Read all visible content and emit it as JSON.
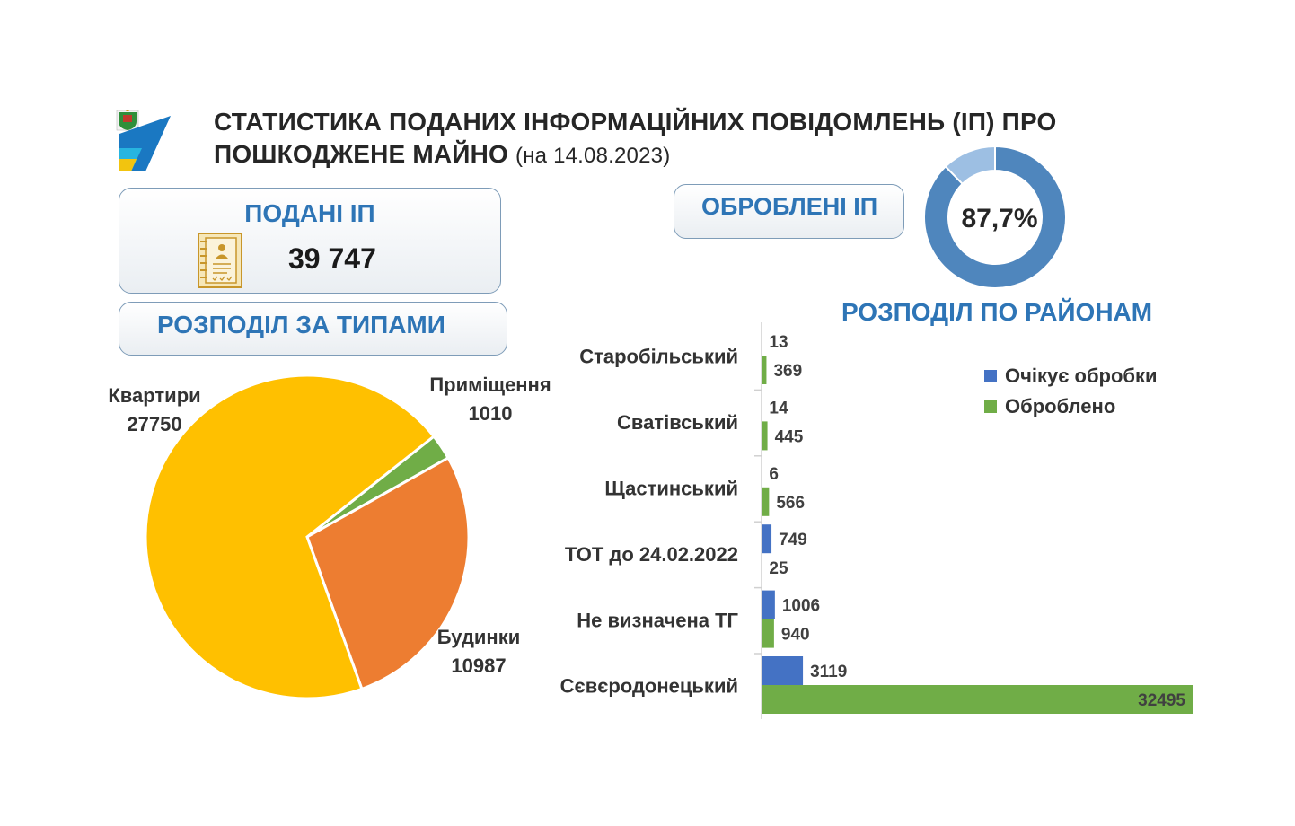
{
  "header": {
    "title": "СТАТИСТИКА ПОДАНИХ ІНФОРМАЦІЙНИХ ПОВІДОМЛЕНЬ (ІП) ПРО ПОШКОДЖЕНЕ МАЙНО",
    "date": "(на 14.08.2023)"
  },
  "submitted": {
    "label": "ПОДАНІ ІП",
    "value": "39 747"
  },
  "types": {
    "label": "РОЗПОДІЛ ЗА ТИПАМИ"
  },
  "processed": {
    "label": "ОБРОБЛЕНІ ІП",
    "percent_label": "87,7%"
  },
  "districts": {
    "label": "РОЗПОДІЛ ПО РАЙОНАМ"
  },
  "colors": {
    "accent_blue": "#2e75b6",
    "donut_main": "#4f86bd",
    "donut_rest": "#9dbfe3",
    "pie_apartments": "#ffc000",
    "pie_houses": "#ed7d31",
    "pie_premises": "#70ad47",
    "bar_pending": "#4472c4",
    "bar_processed": "#70ad47"
  },
  "chart_data": [
    {
      "type": "pie",
      "categories": [
        "Квартири",
        "Будинки",
        "Приміщення"
      ],
      "values": [
        27750,
        10987,
        1010
      ]
    },
    {
      "type": "pie",
      "categories": [
        "Оброблено",
        "Очікує обробки"
      ],
      "values": [
        87.7,
        12.3
      ],
      "center_label": "87,7%"
    },
    {
      "type": "bar",
      "orientation": "horizontal",
      "categories": [
        "Старобільський",
        "Сватівський",
        "Щастинський",
        "ТОТ до 24.02.2022",
        "Не визначена ТГ",
        "Сєвєродонецький"
      ],
      "series": [
        {
          "name": "Очікує обробки",
          "values": [
            13,
            14,
            6,
            749,
            1006,
            3119
          ]
        },
        {
          "name": "Оброблено",
          "values": [
            369,
            445,
            566,
            25,
            940,
            32495
          ]
        }
      ],
      "legend_position": "top-right",
      "grid": false
    }
  ]
}
